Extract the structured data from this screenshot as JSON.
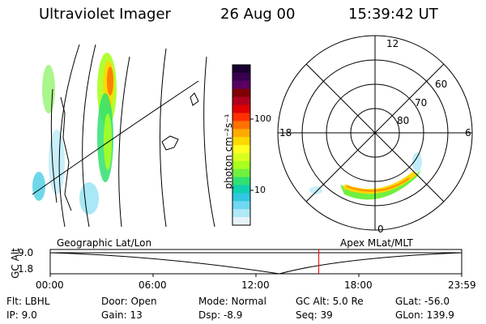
{
  "header": {
    "title": "Ultraviolet Imager",
    "date": "26 Aug 00",
    "time": "15:39:42 UT"
  },
  "colorbar": {
    "unit_label": "photon cm⁻²s⁻¹",
    "ticks": [
      "100",
      "10"
    ],
    "colors": [
      "#1a0030",
      "#3a0050",
      "#5a0060",
      "#800000",
      "#b00020",
      "#e00000",
      "#ff3000",
      "#ff7000",
      "#ffaa00",
      "#ffd800",
      "#ffff20",
      "#d8ff20",
      "#a8ff20",
      "#70f040",
      "#30e070",
      "#10d0b0",
      "#30c8e0",
      "#70d8f0",
      "#b0e8f8",
      "#e8f4fc"
    ]
  },
  "polar": {
    "labels": [
      "12",
      "18",
      "6",
      "0",
      "60",
      "70",
      "80"
    ]
  },
  "timeline": {
    "left_label": "Geographic Lat/Lon",
    "right_label": "Apex MLat/MLT",
    "axis_label": "GC Alt",
    "y_ticks": [
      "9.0",
      "1.8"
    ],
    "x_ticks": [
      "00:00",
      "06:00",
      "12:00",
      "18:00",
      "23:59"
    ],
    "current_time_fraction": 0.6527
  },
  "info": {
    "flt": "Flt: LBHL",
    "ip": "IP:  9.0",
    "door": "Door: Open",
    "gain": "Gain: 13",
    "mode": "Mode: Normal",
    "dsp": "Dsp:    -8.9",
    "gcalt": "GC Alt: 5.0 Re",
    "seq": "Seq: 39",
    "glat": "GLat: -56.0",
    "glon": "GLon: 139.9"
  }
}
